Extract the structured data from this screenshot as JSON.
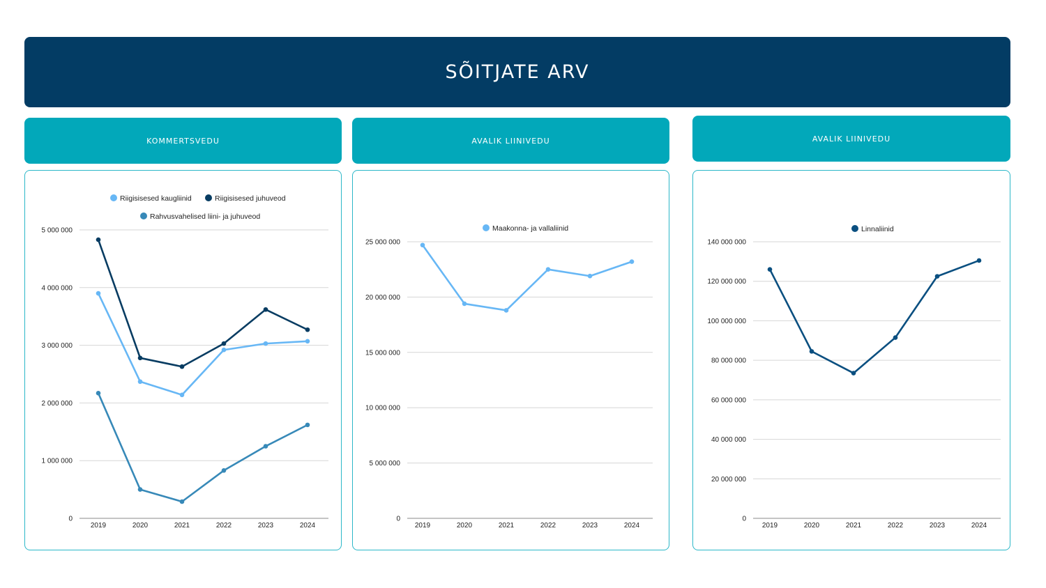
{
  "banner": {
    "title": "SÕITJATE ARV"
  },
  "panels": [
    {
      "header": "KOMMERTSVEDU"
    },
    {
      "header": "AVALIK LIINIVEDU"
    },
    {
      "header": "AVALIK LIINIVEDU"
    }
  ],
  "colors": {
    "banner": "#033c64",
    "header": "#02a8ba",
    "card_border": "#2bb7c8",
    "grid": "#d6d6d6"
  },
  "chart_data": [
    {
      "type": "line",
      "categories": [
        "2019",
        "2020",
        "2021",
        "2022",
        "2023",
        "2024"
      ],
      "ylim": [
        0,
        5000000
      ],
      "yticks": [
        0,
        1000000,
        2000000,
        3000000,
        4000000,
        5000000
      ],
      "ytick_labels": [
        "0",
        "1 000 000",
        "2 000 000",
        "3 000 000",
        "4 000 000",
        "5 000 000"
      ],
      "grid": true,
      "legend": "top",
      "series": [
        {
          "name": "Riigisisesed kaugliinid",
          "color": "#67b7f5",
          "values": [
            3900000,
            2370000,
            2140000,
            2920000,
            3030000,
            3070000
          ]
        },
        {
          "name": "Riigisisesed juhuveod",
          "color": "#083c62",
          "values": [
            4830000,
            2780000,
            2630000,
            3030000,
            3620000,
            3270000
          ]
        },
        {
          "name": "Rahvusvahelised liini- ja juhuveod",
          "color": "#3789b8",
          "values": [
            2170000,
            500000,
            290000,
            830000,
            1250000,
            1620000
          ]
        }
      ]
    },
    {
      "type": "line",
      "categories": [
        "2019",
        "2020",
        "2021",
        "2022",
        "2023",
        "2024"
      ],
      "ylim": [
        0,
        25000000
      ],
      "yticks": [
        0,
        5000000,
        10000000,
        15000000,
        20000000,
        25000000
      ],
      "ytick_labels": [
        "0",
        "5 000 000",
        "10 000 000",
        "15 000 000",
        "20 000 000",
        "25 000 000"
      ],
      "grid": true,
      "legend": "top",
      "series": [
        {
          "name": "Maakonna- ja vallaliinid",
          "color": "#67b7f5",
          "values": [
            24700000,
            19400000,
            18800000,
            22500000,
            21900000,
            23200000
          ]
        }
      ]
    },
    {
      "type": "line",
      "categories": [
        "2019",
        "2020",
        "2021",
        "2022",
        "2023",
        "2024"
      ],
      "ylim": [
        0,
        140000000
      ],
      "yticks": [
        0,
        20000000,
        40000000,
        60000000,
        80000000,
        100000000,
        120000000,
        140000000
      ],
      "ytick_labels": [
        "0",
        "20 000 000",
        "40 000 000",
        "60 000 000",
        "80 000 000",
        "100 000 000",
        "120 000 000",
        "140 000 000"
      ],
      "grid": true,
      "legend": "top",
      "series": [
        {
          "name": "Linnaliinid",
          "color": "#0a4f80",
          "values": [
            126000000,
            84500000,
            73500000,
            91500000,
            122500000,
            130500000
          ]
        }
      ]
    }
  ]
}
